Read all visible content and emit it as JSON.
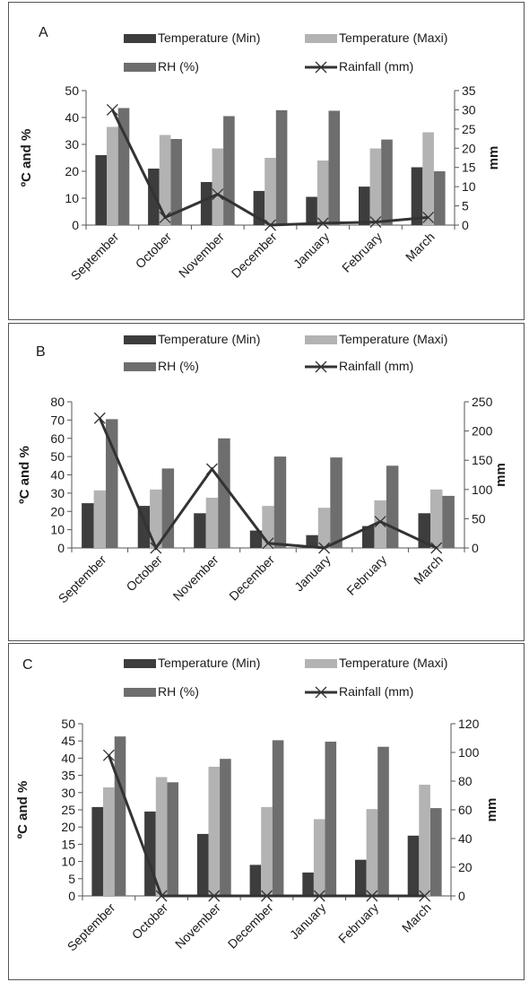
{
  "colors": {
    "temp_min": "#3d3d3d",
    "temp_max": "#b3b3b3",
    "rh": "#6e6e6e",
    "rainfall": "#333333",
    "axis": "#555555"
  },
  "chart_data": [
    {
      "type": "bar",
      "panel_label": "A",
      "categories": [
        "September",
        "October",
        "November",
        "December",
        "January",
        "February",
        "March"
      ],
      "ylabel": "ºC and %",
      "y2label": "mm",
      "ylim": [
        0,
        50
      ],
      "yticks": [
        0,
        10,
        20,
        30,
        40,
        50
      ],
      "y2lim": [
        0,
        35
      ],
      "y2ticks": [
        0,
        5,
        10,
        15,
        20,
        25,
        30,
        35
      ],
      "legend_position": "top",
      "grid": false,
      "series": [
        {
          "name": "Temperature (Min)",
          "type": "bar",
          "axis": "left",
          "color": "#3d3d3d",
          "values": [
            26,
            21,
            16,
            12.7,
            10.5,
            14.3,
            21.5
          ]
        },
        {
          "name": "Temperature (Maxi)",
          "type": "bar",
          "axis": "left",
          "color": "#b3b3b3",
          "values": [
            36.5,
            33.5,
            28.5,
            25,
            24,
            28.5,
            34.5
          ]
        },
        {
          "name": "RH (%)",
          "type": "bar",
          "axis": "left",
          "color": "#6e6e6e",
          "values": [
            43.5,
            32,
            40.5,
            42.7,
            42.5,
            31.8,
            20
          ]
        },
        {
          "name": "Rainfall (mm)",
          "type": "line",
          "axis": "right",
          "color": "#333333",
          "values": [
            30,
            2,
            8,
            0,
            0.5,
            0.8,
            2
          ]
        }
      ]
    },
    {
      "type": "bar",
      "panel_label": "B",
      "categories": [
        "September",
        "October",
        "November",
        "December",
        "January",
        "February",
        "March"
      ],
      "ylabel": "ºC and %",
      "y2label": "mm",
      "ylim": [
        0,
        80
      ],
      "yticks": [
        0,
        10,
        20,
        30,
        40,
        50,
        60,
        70,
        80
      ],
      "y2lim": [
        0,
        250
      ],
      "y2ticks": [
        0,
        50,
        100,
        150,
        200,
        250
      ],
      "legend_position": "top",
      "grid": false,
      "series": [
        {
          "name": "Temperature (Min)",
          "type": "bar",
          "axis": "left",
          "color": "#3d3d3d",
          "values": [
            24.5,
            23,
            19,
            9.5,
            7,
            12,
            19
          ]
        },
        {
          "name": "Temperature (Maxi)",
          "type": "bar",
          "axis": "left",
          "color": "#b3b3b3",
          "values": [
            31.5,
            32,
            27.5,
            23,
            22,
            26,
            32
          ]
        },
        {
          "name": "RH (%)",
          "type": "bar",
          "axis": "left",
          "color": "#6e6e6e",
          "values": [
            70.5,
            43.5,
            60,
            50,
            49.5,
            45,
            28.5
          ]
        },
        {
          "name": "Rainfall (mm)",
          "type": "line",
          "axis": "right",
          "color": "#333333",
          "values": [
            222,
            0,
            135,
            8,
            0,
            45,
            0
          ]
        }
      ]
    },
    {
      "type": "bar",
      "panel_label": "C",
      "categories": [
        "September",
        "October",
        "November",
        "December",
        "January",
        "February",
        "March"
      ],
      "ylabel": "ºC and %",
      "y2label": "mm",
      "ylim": [
        0,
        50
      ],
      "yticks": [
        0,
        5,
        10,
        15,
        20,
        25,
        30,
        35,
        40,
        45,
        50
      ],
      "y2lim": [
        0,
        120
      ],
      "y2ticks": [
        0,
        20,
        40,
        60,
        80,
        100,
        120
      ],
      "legend_position": "top",
      "grid": false,
      "series": [
        {
          "name": "Temperature (Min)",
          "type": "bar",
          "axis": "left",
          "color": "#3d3d3d",
          "values": [
            25.8,
            24.5,
            18,
            9,
            6.8,
            10.5,
            17.5
          ]
        },
        {
          "name": "Temperature (Maxi)",
          "type": "bar",
          "axis": "left",
          "color": "#b3b3b3",
          "values": [
            31.5,
            34.5,
            37.5,
            25.8,
            22.3,
            25.2,
            32.3
          ]
        },
        {
          "name": "RH (%)",
          "type": "bar",
          "axis": "left",
          "color": "#6e6e6e",
          "values": [
            46.3,
            33,
            39.8,
            45.2,
            44.8,
            43.3,
            25.5
          ]
        },
        {
          "name": "Rainfall (mm)",
          "type": "line",
          "axis": "right",
          "color": "#333333",
          "values": [
            98,
            0,
            0,
            0,
            0,
            0,
            0
          ]
        }
      ]
    }
  ]
}
